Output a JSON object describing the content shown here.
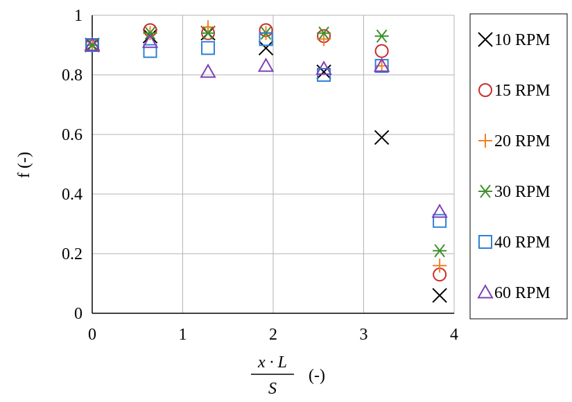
{
  "chart_data": {
    "type": "scatter",
    "xlabel": {
      "numerator": "x · L",
      "denominator": "S",
      "unit": "(-)"
    },
    "ylabel": "f (-)",
    "xlim": [
      0,
      4
    ],
    "ylim": [
      0,
      1
    ],
    "xticks": [
      0,
      1,
      2,
      3,
      4
    ],
    "yticks": [
      0,
      0.2,
      0.4,
      0.6,
      0.8,
      1
    ],
    "grid": true,
    "legend_position": "right",
    "series": [
      {
        "name": "10 RPM",
        "marker": "x",
        "color": "#000000",
        "points": [
          {
            "x": 0,
            "y": 0.9
          },
          {
            "x": 0.64,
            "y": 0.93
          },
          {
            "x": 1.28,
            "y": 0.94
          },
          {
            "x": 1.92,
            "y": 0.89
          },
          {
            "x": 2.56,
            "y": 0.81
          },
          {
            "x": 3.2,
            "y": 0.59
          },
          {
            "x": 3.84,
            "y": 0.06
          }
        ]
      },
      {
        "name": "15 RPM",
        "marker": "circle",
        "color": "#cc2b2b",
        "points": [
          {
            "x": 0,
            "y": 0.9
          },
          {
            "x": 0.64,
            "y": 0.95
          },
          {
            "x": 1.28,
            "y": 0.94
          },
          {
            "x": 1.92,
            "y": 0.95
          },
          {
            "x": 2.56,
            "y": 0.93
          },
          {
            "x": 3.2,
            "y": 0.88
          },
          {
            "x": 3.84,
            "y": 0.13
          }
        ]
      },
      {
        "name": "20 RPM",
        "marker": "plus",
        "color": "#f07f22",
        "points": [
          {
            "x": 0,
            "y": 0.9
          },
          {
            "x": 0.64,
            "y": 0.94
          },
          {
            "x": 1.28,
            "y": 0.96
          },
          {
            "x": 1.92,
            "y": 0.94
          },
          {
            "x": 2.56,
            "y": 0.92
          },
          {
            "x": 3.2,
            "y": 0.83
          },
          {
            "x": 3.84,
            "y": 0.16
          }
        ]
      },
      {
        "name": "30 RPM",
        "marker": "asterisk",
        "color": "#3f8f2c",
        "points": [
          {
            "x": 0,
            "y": 0.9
          },
          {
            "x": 0.64,
            "y": 0.94
          },
          {
            "x": 1.28,
            "y": 0.94
          },
          {
            "x": 1.92,
            "y": 0.94
          },
          {
            "x": 2.56,
            "y": 0.94
          },
          {
            "x": 3.2,
            "y": 0.93
          },
          {
            "x": 3.84,
            "y": 0.21
          }
        ]
      },
      {
        "name": "40 RPM",
        "marker": "square",
        "color": "#2e7fd4",
        "points": [
          {
            "x": 0,
            "y": 0.9
          },
          {
            "x": 0.64,
            "y": 0.88
          },
          {
            "x": 1.28,
            "y": 0.89
          },
          {
            "x": 1.92,
            "y": 0.92
          },
          {
            "x": 2.56,
            "y": 0.8
          },
          {
            "x": 3.2,
            "y": 0.83
          },
          {
            "x": 3.84,
            "y": 0.31
          }
        ]
      },
      {
        "name": "60 RPM",
        "marker": "triangle",
        "color": "#7d3fb8",
        "points": [
          {
            "x": 0,
            "y": 0.9
          },
          {
            "x": 0.64,
            "y": 0.91
          },
          {
            "x": 1.28,
            "y": 0.81
          },
          {
            "x": 1.92,
            "y": 0.83
          },
          {
            "x": 2.56,
            "y": 0.82
          },
          {
            "x": 3.2,
            "y": 0.83
          },
          {
            "x": 3.84,
            "y": 0.34
          }
        ]
      }
    ]
  }
}
